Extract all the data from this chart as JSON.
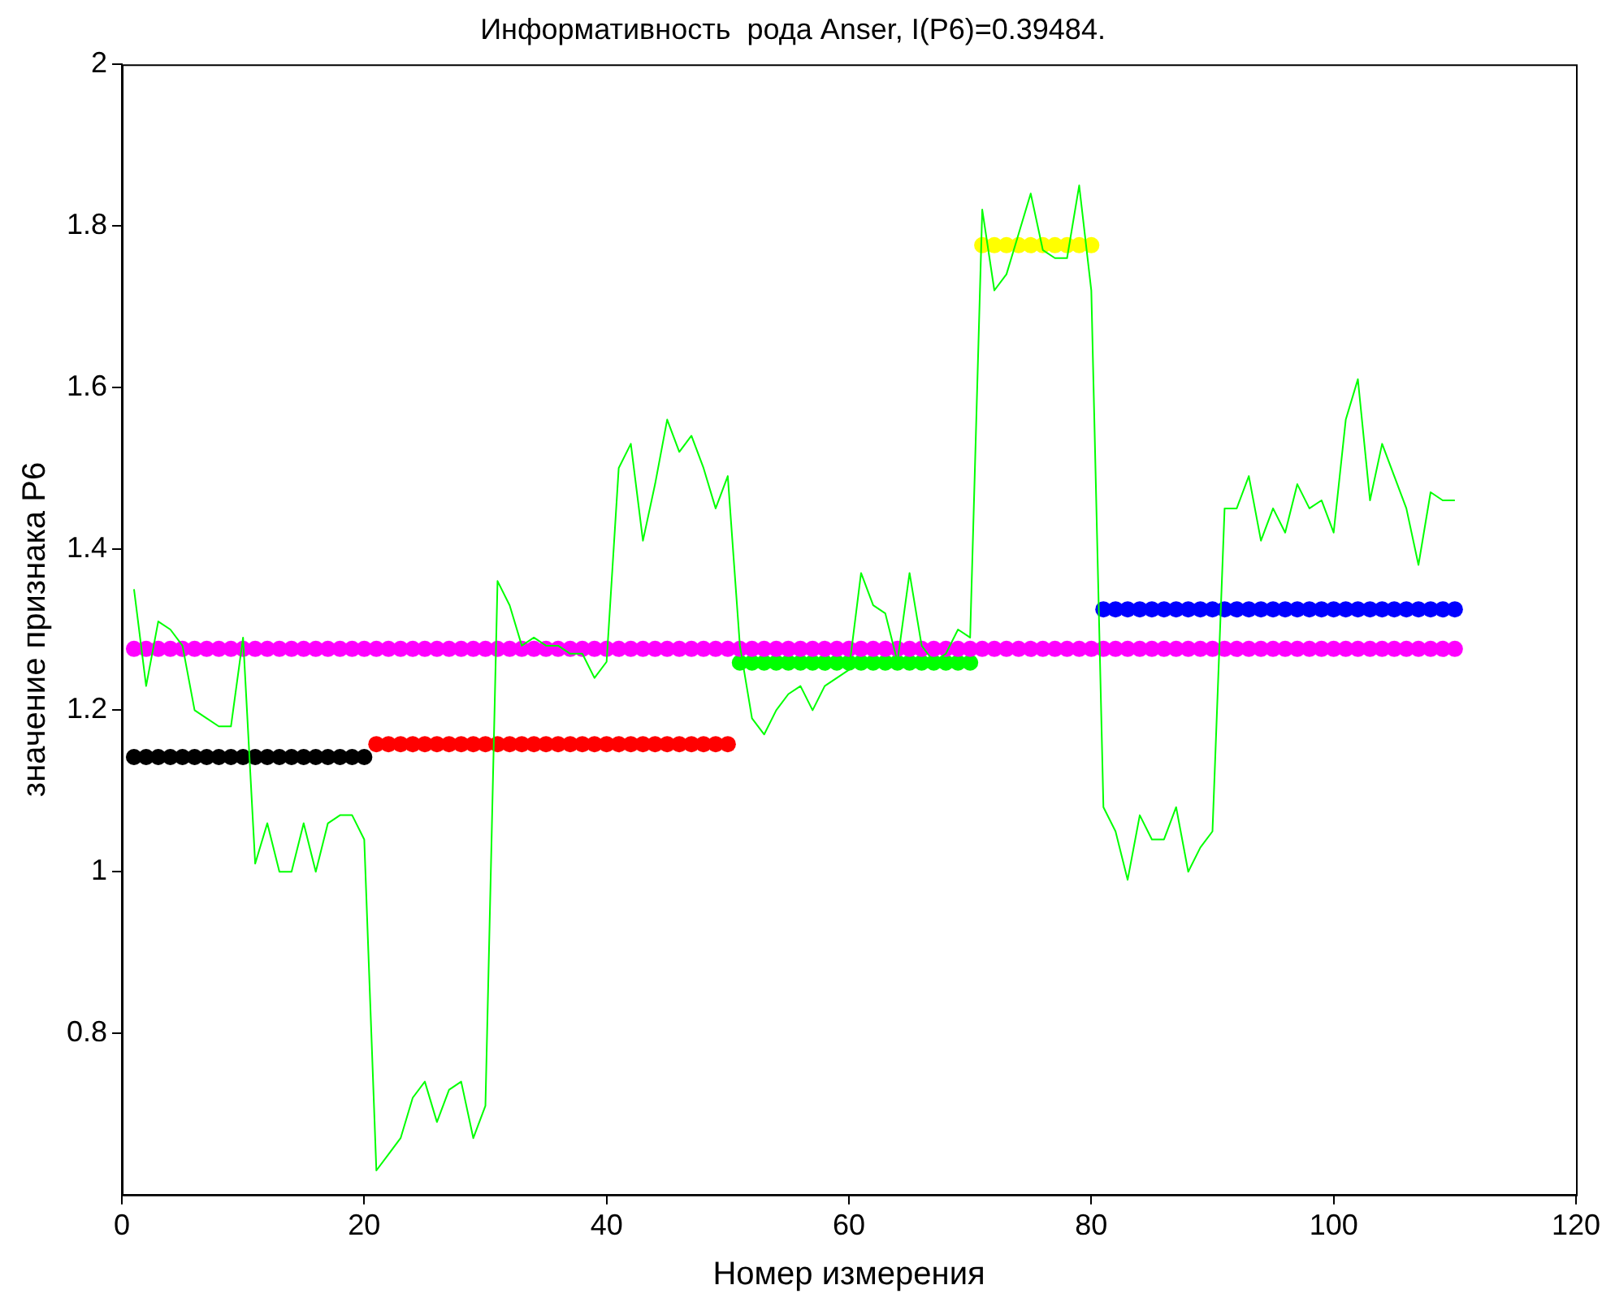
{
  "chart_data": {
    "type": "scatter",
    "title": "Информативность  рода Anser, I(P6)=0.39484.",
    "xlabel": "Номер измерения",
    "ylabel": "значение признака P6",
    "xlim": [
      0,
      120
    ],
    "xticks": [
      0,
      20,
      40,
      60,
      80,
      100,
      120
    ],
    "ylim": [
      0.6,
      2
    ],
    "yticks": [
      0.8,
      1,
      1.2,
      1.4,
      1.6,
      1.8,
      2
    ],
    "grid": false,
    "legend": false,
    "series": [
      {
        "type": "line",
        "color": "#00ff00",
        "marker": "none",
        "x": [
          1,
          2,
          3,
          4,
          5,
          6,
          7,
          8,
          9,
          10,
          11,
          12,
          13,
          14,
          15,
          16,
          17,
          18,
          19,
          20,
          21,
          22,
          23,
          24,
          25,
          26,
          27,
          28,
          29,
          30,
          31,
          32,
          33,
          34,
          35,
          36,
          37,
          38,
          39,
          40,
          41,
          42,
          43,
          44,
          45,
          46,
          47,
          48,
          49,
          50,
          51,
          52,
          53,
          54,
          55,
          56,
          57,
          58,
          59,
          60,
          61,
          62,
          63,
          64,
          65,
          66,
          67,
          68,
          69,
          70,
          71,
          72,
          73,
          74,
          75,
          76,
          77,
          78,
          79,
          80,
          81,
          82,
          83,
          84,
          85,
          86,
          87,
          88,
          89,
          90,
          91,
          92,
          93,
          94,
          95,
          96,
          97,
          98,
          99,
          100,
          101,
          102,
          103,
          104,
          105,
          106,
          107,
          108,
          109,
          110
        ],
        "values": [
          1.35,
          1.23,
          1.31,
          1.3,
          1.28,
          1.2,
          1.19,
          1.18,
          1.18,
          1.29,
          1.01,
          1.06,
          1.0,
          1.0,
          1.06,
          1.0,
          1.06,
          1.07,
          1.07,
          1.04,
          0.63,
          0.65,
          0.67,
          0.72,
          0.74,
          0.69,
          0.73,
          0.74,
          0.67,
          0.71,
          1.36,
          1.33,
          1.28,
          1.29,
          1.28,
          1.28,
          1.27,
          1.27,
          1.24,
          1.26,
          1.5,
          1.53,
          1.41,
          1.48,
          1.56,
          1.52,
          1.54,
          1.5,
          1.45,
          1.49,
          1.28,
          1.19,
          1.17,
          1.2,
          1.22,
          1.23,
          1.2,
          1.23,
          1.24,
          1.25,
          1.37,
          1.33,
          1.32,
          1.26,
          1.37,
          1.28,
          1.26,
          1.27,
          1.3,
          1.29,
          1.82,
          1.72,
          1.74,
          1.79,
          1.84,
          1.77,
          1.76,
          1.76,
          1.85,
          1.72,
          1.08,
          1.05,
          0.99,
          1.07,
          1.04,
          1.04,
          1.08,
          1.0,
          1.03,
          1.05,
          1.45,
          1.45,
          1.49,
          1.41,
          1.45,
          1.42,
          1.48,
          1.45,
          1.46,
          1.42,
          1.56,
          1.61,
          1.46,
          1.53,
          1.49,
          1.45,
          1.38,
          1.47,
          1.46,
          1.46
        ]
      },
      {
        "color": "#ff00ff",
        "marker": "circle",
        "x": [
          1,
          2,
          3,
          4,
          5,
          6,
          7,
          8,
          9,
          10,
          11,
          12,
          13,
          14,
          15,
          16,
          17,
          18,
          19,
          20,
          21,
          22,
          23,
          24,
          25,
          26,
          27,
          28,
          29,
          30,
          31,
          32,
          33,
          34,
          35,
          36,
          37,
          38,
          39,
          40,
          41,
          42,
          43,
          44,
          45,
          46,
          47,
          48,
          49,
          50,
          51,
          52,
          53,
          54,
          55,
          56,
          57,
          58,
          59,
          60,
          61,
          62,
          63,
          64,
          65,
          66,
          67,
          68,
          69,
          70,
          71,
          72,
          73,
          74,
          75,
          76,
          77,
          78,
          79,
          80,
          81,
          82,
          83,
          84,
          85,
          86,
          87,
          88,
          89,
          90,
          91,
          92,
          93,
          94,
          95,
          96,
          97,
          98,
          99,
          100,
          101,
          102,
          103,
          104,
          105,
          106,
          107,
          108,
          109,
          110
        ],
        "values": [
          1.276,
          1.276,
          1.276,
          1.276,
          1.276,
          1.276,
          1.276,
          1.276,
          1.276,
          1.276,
          1.276,
          1.276,
          1.276,
          1.276,
          1.276,
          1.276,
          1.276,
          1.276,
          1.276,
          1.276,
          1.276,
          1.276,
          1.276,
          1.276,
          1.276,
          1.276,
          1.276,
          1.276,
          1.276,
          1.276,
          1.276,
          1.276,
          1.276,
          1.276,
          1.276,
          1.276,
          1.276,
          1.276,
          1.276,
          1.276,
          1.276,
          1.276,
          1.276,
          1.276,
          1.276,
          1.276,
          1.276,
          1.276,
          1.276,
          1.276,
          1.276,
          1.276,
          1.276,
          1.276,
          1.276,
          1.276,
          1.276,
          1.276,
          1.276,
          1.276,
          1.276,
          1.276,
          1.276,
          1.276,
          1.276,
          1.276,
          1.276,
          1.276,
          1.276,
          1.276,
          1.276,
          1.276,
          1.276,
          1.276,
          1.276,
          1.276,
          1.276,
          1.276,
          1.276,
          1.276,
          1.276,
          1.276,
          1.276,
          1.276,
          1.276,
          1.276,
          1.276,
          1.276,
          1.276,
          1.276,
          1.276,
          1.276,
          1.276,
          1.276,
          1.276,
          1.276,
          1.276,
          1.276,
          1.276,
          1.276,
          1.276,
          1.276,
          1.276,
          1.276,
          1.276,
          1.276,
          1.276,
          1.276,
          1.276,
          1.276
        ]
      },
      {
        "color": "#0000ff",
        "marker": "circle",
        "x": [
          81,
          82,
          83,
          84,
          85,
          86,
          87,
          88,
          89,
          90,
          91,
          92,
          93,
          94,
          95,
          96,
          97,
          98,
          99,
          100,
          101,
          102,
          103,
          104,
          105,
          106,
          107,
          108,
          109,
          110
        ],
        "values": [
          1.325,
          1.325,
          1.325,
          1.325,
          1.325,
          1.325,
          1.325,
          1.325,
          1.325,
          1.325,
          1.325,
          1.325,
          1.325,
          1.325,
          1.325,
          1.325,
          1.325,
          1.325,
          1.325,
          1.325,
          1.325,
          1.325,
          1.325,
          1.325,
          1.325,
          1.325,
          1.325,
          1.325,
          1.325,
          1.325
        ]
      },
      {
        "color": "#ffff00",
        "marker": "circle",
        "x": [
          71,
          72,
          73,
          74,
          75,
          76,
          77,
          78,
          79,
          80
        ],
        "values": [
          1.776,
          1.776,
          1.776,
          1.776,
          1.776,
          1.776,
          1.776,
          1.776,
          1.776,
          1.776
        ]
      },
      {
        "color": "#00ff00",
        "marker": "circle",
        "x": [
          51,
          52,
          53,
          54,
          55,
          56,
          57,
          58,
          59,
          60,
          61,
          62,
          63,
          64,
          65,
          66,
          67,
          68,
          69,
          70
        ],
        "values": [
          1.259,
          1.259,
          1.259,
          1.259,
          1.259,
          1.259,
          1.259,
          1.259,
          1.259,
          1.259,
          1.259,
          1.259,
          1.259,
          1.259,
          1.259,
          1.259,
          1.259,
          1.259,
          1.259,
          1.259
        ]
      },
      {
        "color": "#ff0000",
        "marker": "circle",
        "x": [
          21,
          22,
          23,
          24,
          25,
          26,
          27,
          28,
          29,
          30,
          31,
          32,
          33,
          34,
          35,
          36,
          37,
          38,
          39,
          40,
          41,
          42,
          43,
          44,
          45,
          46,
          47,
          48,
          49,
          50
        ],
        "values": [
          1.158,
          1.158,
          1.158,
          1.158,
          1.158,
          1.158,
          1.158,
          1.158,
          1.158,
          1.158,
          1.158,
          1.158,
          1.158,
          1.158,
          1.158,
          1.158,
          1.158,
          1.158,
          1.158,
          1.158,
          1.158,
          1.158,
          1.158,
          1.158,
          1.158,
          1.158,
          1.158,
          1.158,
          1.158,
          1.158
        ]
      },
      {
        "color": "#000000",
        "marker": "circle",
        "x": [
          1,
          2,
          3,
          4,
          5,
          6,
          7,
          8,
          9,
          10,
          11,
          12,
          13,
          14,
          15,
          16,
          17,
          18,
          19,
          20
        ],
        "values": [
          1.142,
          1.142,
          1.142,
          1.142,
          1.142,
          1.142,
          1.142,
          1.142,
          1.142,
          1.142,
          1.142,
          1.142,
          1.142,
          1.142,
          1.142,
          1.142,
          1.142,
          1.142,
          1.142,
          1.142
        ]
      }
    ]
  }
}
